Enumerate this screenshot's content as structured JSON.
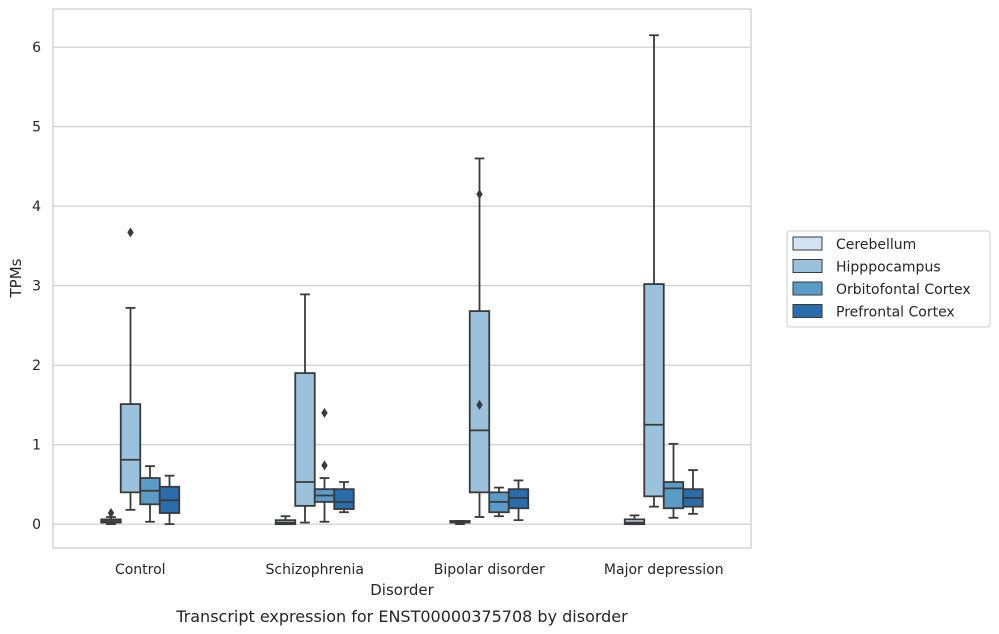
{
  "chart_data": {
    "type": "box",
    "caption": "Transcript expression for ENST00000375708 by disorder",
    "xlabel": "Disorder",
    "ylabel": "TPMs",
    "ylim": [
      -0.3,
      6.48
    ],
    "yticks": [
      0,
      1,
      2,
      3,
      4,
      5,
      6
    ],
    "grid": true,
    "legend_position": "right-center",
    "categories": [
      "Control",
      "Schizophrenia",
      "Bipolar disorder",
      "Major depression"
    ],
    "series": [
      {
        "name": "Cerebellum",
        "color": "#d1e2f2",
        "boxes": [
          {
            "whislo": 0.0,
            "q1": 0.02,
            "med": 0.04,
            "q3": 0.06,
            "whishi": 0.09,
            "fliers": [
              0.14
            ]
          },
          {
            "whislo": 0.0,
            "q1": 0.0,
            "med": 0.02,
            "q3": 0.05,
            "whishi": 0.1,
            "fliers": []
          },
          {
            "whislo": 0.0,
            "q1": 0.02,
            "med": 0.03,
            "q3": 0.04,
            "whishi": 0.04,
            "fliers": []
          },
          {
            "whislo": 0.0,
            "q1": 0.0,
            "med": 0.02,
            "q3": 0.06,
            "whishi": 0.11,
            "fliers": []
          }
        ]
      },
      {
        "name": "Hipppocampus",
        "color": "#9ac2dd",
        "boxes": [
          {
            "whislo": 0.18,
            "q1": 0.4,
            "med": 0.81,
            "q3": 1.51,
            "whishi": 2.72,
            "fliers": [
              3.67
            ]
          },
          {
            "whislo": 0.02,
            "q1": 0.23,
            "med": 0.53,
            "q3": 1.9,
            "whishi": 2.89,
            "fliers": []
          },
          {
            "whislo": 0.09,
            "q1": 0.4,
            "med": 1.18,
            "q3": 2.68,
            "whishi": 4.6,
            "fliers": [
              1.5,
              4.15
            ]
          },
          {
            "whislo": 0.22,
            "q1": 0.35,
            "med": 1.25,
            "q3": 3.02,
            "whishi": 6.15,
            "fliers": []
          }
        ]
      },
      {
        "name": "Orbitofontal Cortex",
        "color": "#5a9bc8",
        "boxes": [
          {
            "whislo": 0.03,
            "q1": 0.25,
            "med": 0.42,
            "q3": 0.58,
            "whishi": 0.73,
            "fliers": []
          },
          {
            "whislo": 0.03,
            "q1": 0.28,
            "med": 0.36,
            "q3": 0.44,
            "whishi": 0.58,
            "fliers": [
              0.74,
              1.4
            ]
          },
          {
            "whislo": 0.1,
            "q1": 0.15,
            "med": 0.28,
            "q3": 0.4,
            "whishi": 0.46,
            "fliers": []
          },
          {
            "whislo": 0.08,
            "q1": 0.2,
            "med": 0.45,
            "q3": 0.53,
            "whishi": 1.01,
            "fliers": []
          }
        ]
      },
      {
        "name": "Prefrontal Cortex",
        "color": "#2a6dad",
        "boxes": [
          {
            "whislo": 0.0,
            "q1": 0.14,
            "med": 0.3,
            "q3": 0.47,
            "whishi": 0.61,
            "fliers": []
          },
          {
            "whislo": 0.15,
            "q1": 0.19,
            "med": 0.28,
            "q3": 0.44,
            "whishi": 0.53,
            "fliers": []
          },
          {
            "whislo": 0.05,
            "q1": 0.2,
            "med": 0.33,
            "q3": 0.44,
            "whishi": 0.55,
            "fliers": []
          },
          {
            "whislo": 0.13,
            "q1": 0.22,
            "med": 0.33,
            "q3": 0.44,
            "whishi": 0.68,
            "fliers": []
          }
        ]
      }
    ]
  }
}
